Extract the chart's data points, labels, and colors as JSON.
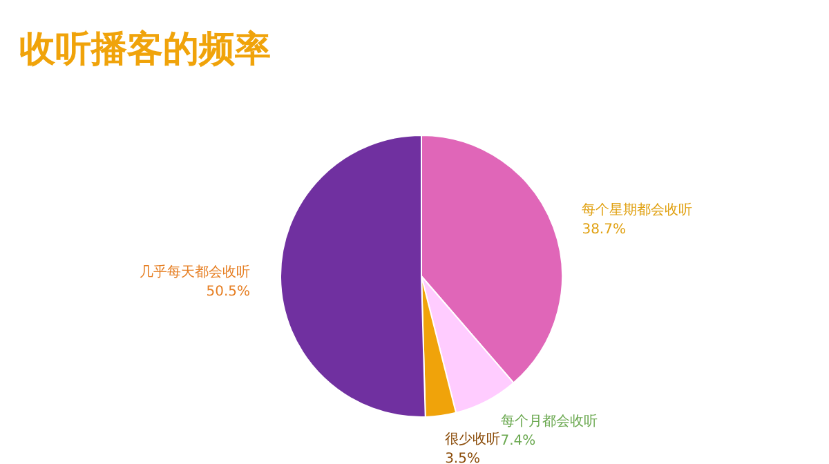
{
  "chart_data": {
    "type": "pie",
    "title": "收听播客的频率",
    "categories": [
      "每个星期都会收听",
      "每个月都会收听",
      "很少收听",
      "几乎每天都会收听"
    ],
    "values": [
      38.7,
      7.4,
      3.5,
      50.5
    ],
    "colors": [
      "#e066b8",
      "#ffccff",
      "#f0a30a",
      "#7030a0"
    ],
    "value_labels": [
      "38.7%",
      "7.4%",
      "3.5%",
      "50.5%"
    ]
  }
}
